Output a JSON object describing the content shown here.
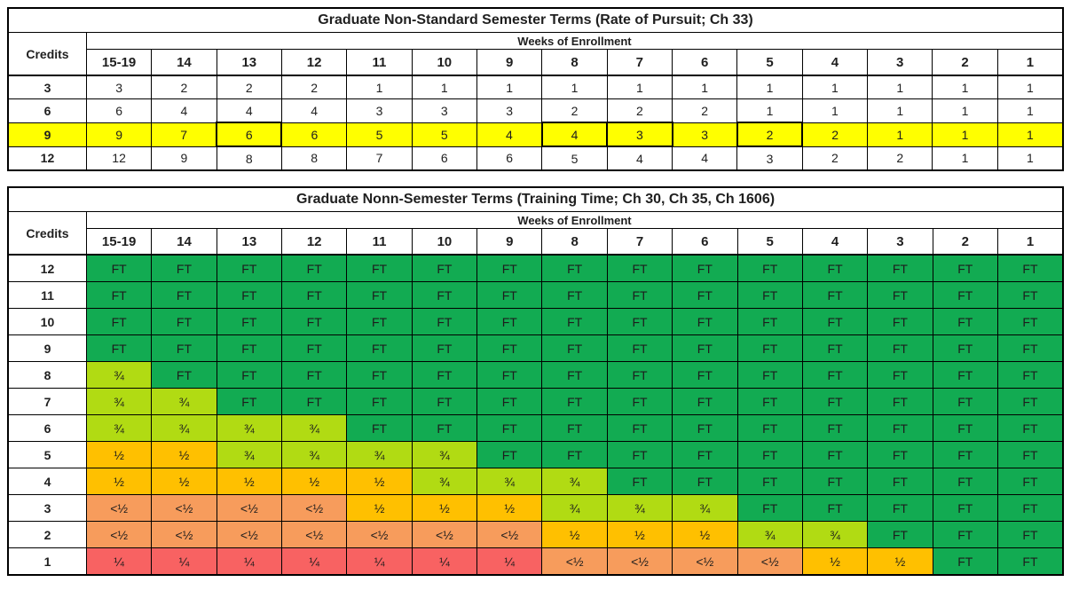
{
  "colors": {
    "ft_green": "#12AB52",
    "three_quarter": "#B1DB13",
    "half": "#FFC000",
    "less_half": "#F79C5C",
    "quarter": "#F86262",
    "highlight_yellow": "#FFFF00"
  },
  "table1": {
    "title": "Graduate Non-Standard Semester Terms (Rate of Pursuit; Ch 33)",
    "credits_header": "Credits",
    "weeks_header": "Weeks of Enrollment",
    "week_columns": [
      "15-19",
      "14",
      "13",
      "12",
      "11",
      "10",
      "9",
      "8",
      "7",
      "6",
      "5",
      "4",
      "3",
      "2",
      "1"
    ],
    "rows": [
      {
        "credits": "3",
        "highlight": false,
        "boxed": [],
        "values": [
          "3",
          "2",
          "2",
          "2",
          "1",
          "1",
          "1",
          "1",
          "1",
          "1",
          "1",
          "1",
          "1",
          "1",
          "1"
        ]
      },
      {
        "credits": "6",
        "highlight": false,
        "boxed": [],
        "values": [
          "6",
          "4",
          "4",
          "4",
          "3",
          "3",
          "3",
          "2",
          "2",
          "2",
          "1",
          "1",
          "1",
          "1",
          "1"
        ]
      },
      {
        "credits": "9",
        "highlight": true,
        "boxed": [
          2,
          7,
          8,
          10
        ],
        "values": [
          "9",
          "7",
          "6",
          "6",
          "5",
          "5",
          "4",
          "4",
          "3",
          "3",
          "2",
          "2",
          "1",
          "1",
          "1"
        ]
      },
      {
        "credits": "12",
        "highlight": false,
        "boxed": [],
        "values": [
          "12",
          "9",
          "8",
          "8",
          "7",
          "6",
          "6",
          "5",
          "4",
          "4",
          "3",
          "2",
          "2",
          "1",
          "1"
        ]
      }
    ]
  },
  "table2": {
    "title": "Graduate Nonn-Semester Terms (Training Time; Ch 30, Ch 35, Ch 1606)",
    "credits_header": "Credits",
    "weeks_header": "Weeks of Enrollment",
    "week_columns": [
      "15-19",
      "14",
      "13",
      "12",
      "11",
      "10",
      "9",
      "8",
      "7",
      "6",
      "5",
      "4",
      "3",
      "2",
      "1"
    ],
    "value_colors": {
      "FT": "ft_green",
      "¾": "three_quarter",
      "½": "half",
      "<½": "less_half",
      "¼": "quarter"
    },
    "rows": [
      {
        "credits": "12",
        "values": [
          "FT",
          "FT",
          "FT",
          "FT",
          "FT",
          "FT",
          "FT",
          "FT",
          "FT",
          "FT",
          "FT",
          "FT",
          "FT",
          "FT",
          "FT"
        ]
      },
      {
        "credits": "11",
        "values": [
          "FT",
          "FT",
          "FT",
          "FT",
          "FT",
          "FT",
          "FT",
          "FT",
          "FT",
          "FT",
          "FT",
          "FT",
          "FT",
          "FT",
          "FT"
        ]
      },
      {
        "credits": "10",
        "values": [
          "FT",
          "FT",
          "FT",
          "FT",
          "FT",
          "FT",
          "FT",
          "FT",
          "FT",
          "FT",
          "FT",
          "FT",
          "FT",
          "FT",
          "FT"
        ]
      },
      {
        "credits": "9",
        "values": [
          "FT",
          "FT",
          "FT",
          "FT",
          "FT",
          "FT",
          "FT",
          "FT",
          "FT",
          "FT",
          "FT",
          "FT",
          "FT",
          "FT",
          "FT"
        ]
      },
      {
        "credits": "8",
        "values": [
          "¾",
          "FT",
          "FT",
          "FT",
          "FT",
          "FT",
          "FT",
          "FT",
          "FT",
          "FT",
          "FT",
          "FT",
          "FT",
          "FT",
          "FT"
        ]
      },
      {
        "credits": "7",
        "values": [
          "¾",
          "¾",
          "FT",
          "FT",
          "FT",
          "FT",
          "FT",
          "FT",
          "FT",
          "FT",
          "FT",
          "FT",
          "FT",
          "FT",
          "FT"
        ]
      },
      {
        "credits": "6",
        "values": [
          "¾",
          "¾",
          "¾",
          "¾",
          "FT",
          "FT",
          "FT",
          "FT",
          "FT",
          "FT",
          "FT",
          "FT",
          "FT",
          "FT",
          "FT"
        ]
      },
      {
        "credits": "5",
        "values": [
          "½",
          "½",
          "¾",
          "¾",
          "¾",
          "¾",
          "FT",
          "FT",
          "FT",
          "FT",
          "FT",
          "FT",
          "FT",
          "FT",
          "FT"
        ]
      },
      {
        "credits": "4",
        "values": [
          "½",
          "½",
          "½",
          "½",
          "½",
          "¾",
          "¾",
          "¾",
          "FT",
          "FT",
          "FT",
          "FT",
          "FT",
          "FT",
          "FT"
        ]
      },
      {
        "credits": "3",
        "values": [
          "<½",
          "<½",
          "<½",
          "<½",
          "½",
          "½",
          "½",
          "¾",
          "¾",
          "¾",
          "FT",
          "FT",
          "FT",
          "FT",
          "FT"
        ]
      },
      {
        "credits": "2",
        "values": [
          "<½",
          "<½",
          "<½",
          "<½",
          "<½",
          "<½",
          "<½",
          "½",
          "½",
          "½",
          "¾",
          "¾",
          "FT",
          "FT",
          "FT"
        ]
      },
      {
        "credits": "1",
        "values": [
          "¼",
          "¼",
          "¼",
          "¼",
          "¼",
          "¼",
          "¼",
          "<½",
          "<½",
          "<½",
          "<½",
          "½",
          "½",
          "FT",
          "FT"
        ]
      }
    ]
  }
}
